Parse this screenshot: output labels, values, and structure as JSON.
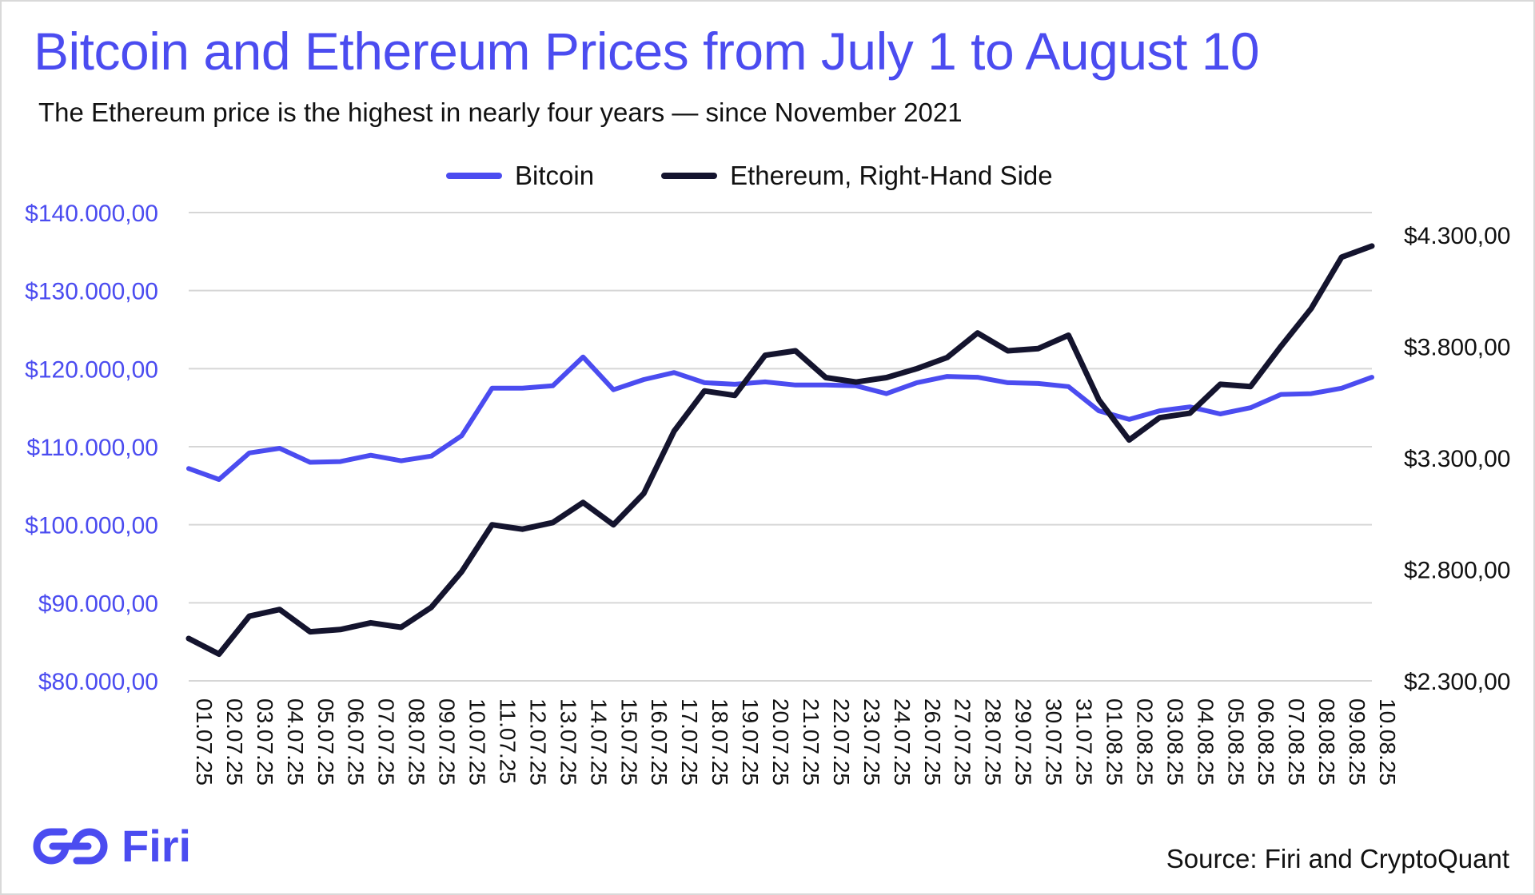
{
  "title": "Bitcoin and Ethereum Prices from July 1 to August 10",
  "subtitle": "The Ethereum price is the highest in nearly four years — since November 2021",
  "source": "Source: Firi and CryptoQuant",
  "brand": {
    "name": "Firi",
    "color": "#4b4cf0"
  },
  "chart_data": {
    "type": "line",
    "title": "Bitcoin and Ethereum Prices from July 1 to August 10",
    "xlabel": "",
    "ylabel": "",
    "y2label": "",
    "grid": true,
    "legend_position": "top-center",
    "categories": [
      "01.07.25",
      "02.07.25",
      "03.07.25",
      "04.07.25",
      "05.07.25",
      "06.07.25",
      "07.07.25",
      "08.07.25",
      "09.07.25",
      "10.07.25",
      "11.07.25",
      "12.07.25",
      "13.07.25",
      "14.07.25",
      "15.07.25",
      "16.07.25",
      "17.07.25",
      "18.07.25",
      "19.07.25",
      "20.07.25",
      "21.07.25",
      "22.07.25",
      "23.07.25",
      "24.07.25",
      "26.07.25",
      "27.07.25",
      "28.07.25",
      "29.07.25",
      "30.07.25",
      "31.07.25",
      "01.08.25",
      "02.08.25",
      "03.08.25",
      "04.08.25",
      "05.08.25",
      "06.08.25",
      "07.08.25",
      "08.08.25",
      "09.08.25",
      "10.08.25"
    ],
    "y_left": {
      "ylim": [
        80000,
        140000
      ],
      "ticks": [
        140000,
        130000,
        120000,
        110000,
        100000,
        90000,
        80000
      ],
      "tick_labels": [
        "$140.000,00",
        "$130.000,00",
        "$120.000,00",
        "$110.000,00",
        "$100.000,00",
        "$90.000,00",
        "$80.000,00"
      ]
    },
    "y_right": {
      "ylim": [
        2300,
        4400
      ],
      "ticks": [
        4300,
        3800,
        3300,
        2800,
        2300
      ],
      "tick_labels": [
        "$4.300,00",
        "$3.800,00",
        "$3.300,00",
        "$2.800,00",
        "$2.300,00"
      ]
    },
    "series": [
      {
        "name": "Bitcoin",
        "axis": "left",
        "color": "#4b4cf0",
        "values": [
          107200,
          105800,
          109200,
          109800,
          108000,
          108100,
          108900,
          108200,
          108800,
          111400,
          117500,
          117500,
          117800,
          121500,
          117300,
          118600,
          119500,
          118200,
          118000,
          118300,
          117900,
          117900,
          117800,
          116800,
          118200,
          119000,
          118900,
          118200,
          118100,
          117700,
          114600,
          113500,
          114600,
          115100,
          114200,
          115000,
          116700,
          116800,
          117500,
          118900
        ]
      },
      {
        "name": "Ethereum, Right-Hand Side",
        "axis": "right",
        "color": "#14142e",
        "values": [
          2490,
          2420,
          2590,
          2620,
          2520,
          2530,
          2560,
          2540,
          2630,
          2790,
          3000,
          2980,
          3010,
          3100,
          3000,
          3140,
          3420,
          3600,
          3580,
          3760,
          3780,
          3660,
          3640,
          3660,
          3700,
          3750,
          3860,
          3780,
          3790,
          3850,
          3560,
          3380,
          3480,
          3500,
          3630,
          3620,
          3800,
          3970,
          4200,
          4250
        ]
      }
    ]
  }
}
